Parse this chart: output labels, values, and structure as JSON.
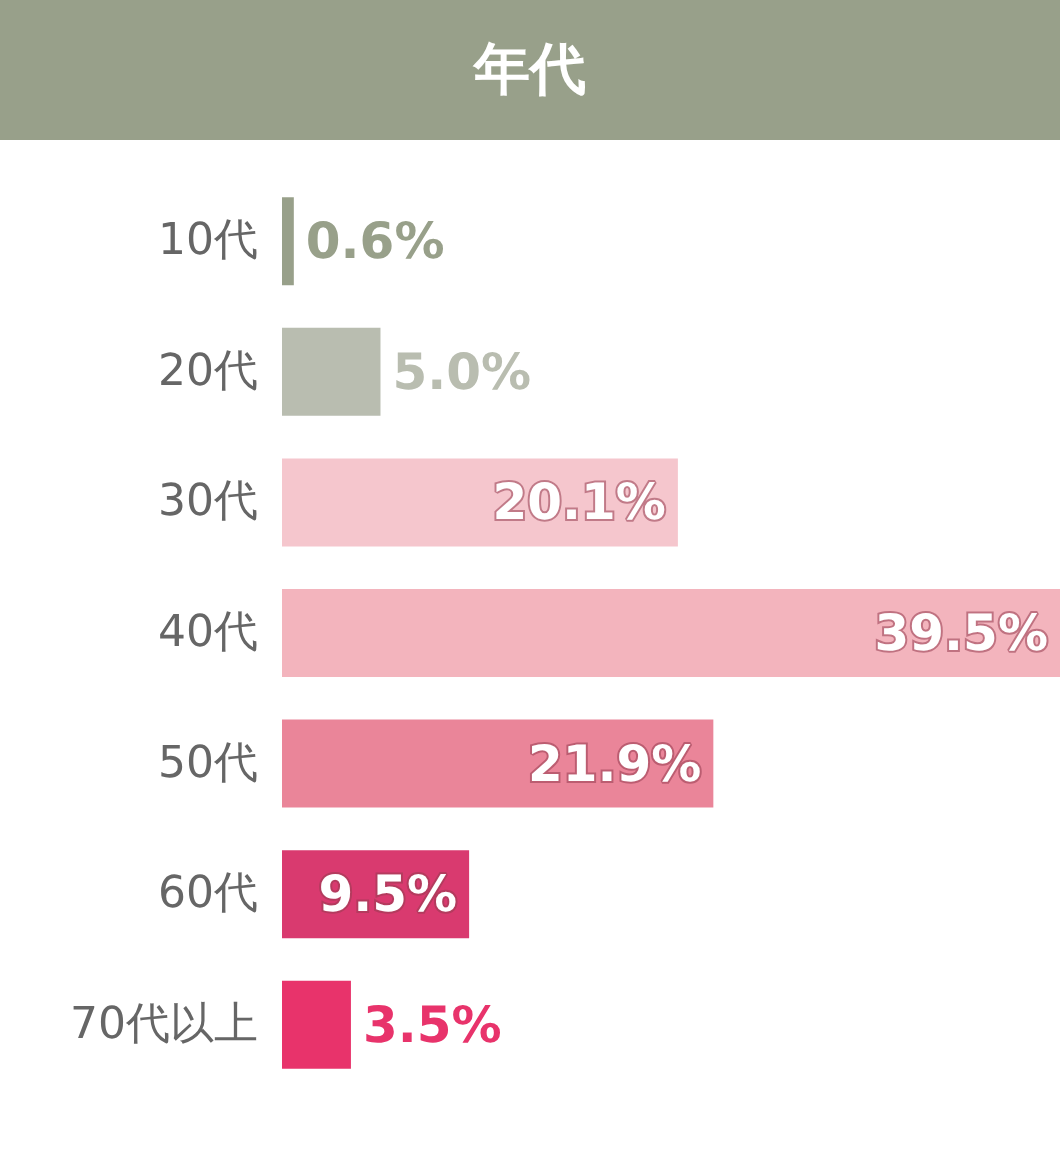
{
  "chart_data": {
    "type": "bar",
    "title": "年代",
    "orientation": "horizontal",
    "categories": [
      "10代",
      "20代",
      "30代",
      "40代",
      "50代",
      "60代",
      "70代以上"
    ],
    "values": [
      0.6,
      5.0,
      20.1,
      39.5,
      21.9,
      9.5,
      3.5
    ],
    "colors": [
      "#98a08a",
      "#b9bdb0",
      "#f5c6cd",
      "#f3b4bd",
      "#ea8599",
      "#d93a6f",
      "#e8336b"
    ],
    "value_labels": [
      "0.6%",
      "5.0%",
      "20.1%",
      "39.5%",
      "21.9%",
      "9.5%",
      "3.5%"
    ],
    "tick_labels": "y"
  }
}
